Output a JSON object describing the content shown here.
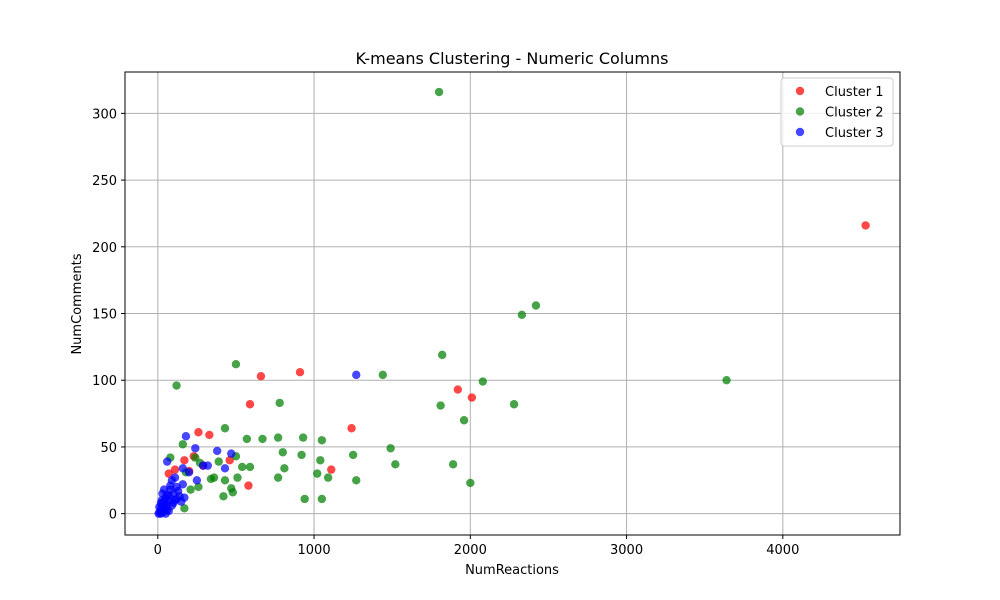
{
  "chart_data": {
    "type": "scatter",
    "title": "K-means Clustering - Numeric Columns",
    "xlabel": "NumReactions",
    "ylabel": "NumComments",
    "xlim": [
      -210,
      4750
    ],
    "ylim": [
      -16,
      331
    ],
    "xticks": [
      0,
      1000,
      2000,
      3000,
      4000
    ],
    "yticks": [
      0,
      50,
      100,
      150,
      200,
      250,
      300
    ],
    "grid": true,
    "legend_position": "top-right",
    "series": [
      {
        "name": "Cluster 1",
        "color": "#ff0000",
        "points": [
          [
            4530,
            216
          ],
          [
            1920,
            93
          ],
          [
            2010,
            87
          ],
          [
            1240,
            64
          ],
          [
            1110,
            33
          ],
          [
            910,
            106
          ],
          [
            660,
            103
          ],
          [
            590,
            82
          ],
          [
            580,
            21
          ],
          [
            330,
            59
          ],
          [
            260,
            61
          ],
          [
            230,
            43
          ],
          [
            170,
            40
          ],
          [
            110,
            33
          ],
          [
            70,
            30
          ],
          [
            290,
            36
          ],
          [
            460,
            40
          ],
          [
            200,
            32
          ]
        ]
      },
      {
        "name": "Cluster 2",
        "color": "#008000",
        "points": [
          [
            1800,
            316
          ],
          [
            2420,
            156
          ],
          [
            2330,
            149
          ],
          [
            1820,
            119
          ],
          [
            2080,
            99
          ],
          [
            3640,
            100
          ],
          [
            2280,
            82
          ],
          [
            1440,
            104
          ],
          [
            500,
            112
          ],
          [
            120,
            96
          ],
          [
            780,
            83
          ],
          [
            1810,
            81
          ],
          [
            1960,
            70
          ],
          [
            1050,
            55
          ],
          [
            1490,
            49
          ],
          [
            1250,
            44
          ],
          [
            920,
            44
          ],
          [
            930,
            57
          ],
          [
            770,
            57
          ],
          [
            670,
            56
          ],
          [
            570,
            56
          ],
          [
            430,
            64
          ],
          [
            160,
            52
          ],
          [
            80,
            42
          ],
          [
            270,
            38
          ],
          [
            390,
            39
          ],
          [
            500,
            43
          ],
          [
            590,
            35
          ],
          [
            540,
            35
          ],
          [
            1040,
            40
          ],
          [
            1520,
            37
          ],
          [
            1890,
            37
          ],
          [
            810,
            34
          ],
          [
            1020,
            30
          ],
          [
            1090,
            27
          ],
          [
            1270,
            25
          ],
          [
            510,
            27
          ],
          [
            430,
            25
          ],
          [
            340,
            26
          ],
          [
            770,
            27
          ],
          [
            2000,
            23
          ],
          [
            260,
            20
          ],
          [
            470,
            19
          ],
          [
            940,
            11
          ],
          [
            1050,
            11
          ],
          [
            420,
            13
          ],
          [
            480,
            16
          ],
          [
            170,
            4
          ],
          [
            800,
            46
          ],
          [
            180,
            31
          ],
          [
            240,
            42
          ],
          [
            360,
            27
          ],
          [
            210,
            18
          ]
        ]
      },
      {
        "name": "Cluster 3",
        "color": "#0000ff",
        "points": [
          [
            1270,
            104
          ],
          [
            180,
            58
          ],
          [
            240,
            49
          ],
          [
            380,
            47
          ],
          [
            470,
            45
          ],
          [
            60,
            39
          ],
          [
            290,
            36
          ],
          [
            430,
            34
          ],
          [
            320,
            36
          ],
          [
            160,
            34
          ],
          [
            200,
            31
          ],
          [
            110,
            27
          ],
          [
            90,
            25
          ],
          [
            250,
            25
          ],
          [
            160,
            22
          ],
          [
            120,
            20
          ],
          [
            80,
            18
          ],
          [
            40,
            18
          ],
          [
            30,
            15
          ],
          [
            60,
            14
          ],
          [
            100,
            15
          ],
          [
            140,
            13
          ],
          [
            50,
            12
          ],
          [
            70,
            10
          ],
          [
            110,
            10
          ],
          [
            40,
            9
          ],
          [
            20,
            8
          ],
          [
            60,
            7
          ],
          [
            30,
            6
          ],
          [
            90,
            6
          ],
          [
            10,
            5
          ],
          [
            50,
            4
          ],
          [
            20,
            3
          ],
          [
            40,
            2
          ],
          [
            70,
            2
          ],
          [
            10,
            1
          ],
          [
            30,
            1
          ],
          [
            5,
            0
          ],
          [
            50,
            0
          ],
          [
            20,
            0
          ],
          [
            100,
            8
          ],
          [
            130,
            17
          ],
          [
            170,
            12
          ],
          [
            80,
            21
          ],
          [
            120,
            11
          ],
          [
            60,
            3
          ],
          [
            45,
            6
          ],
          [
            25,
            10
          ],
          [
            75,
            13
          ],
          [
            150,
            9
          ]
        ]
      }
    ]
  }
}
